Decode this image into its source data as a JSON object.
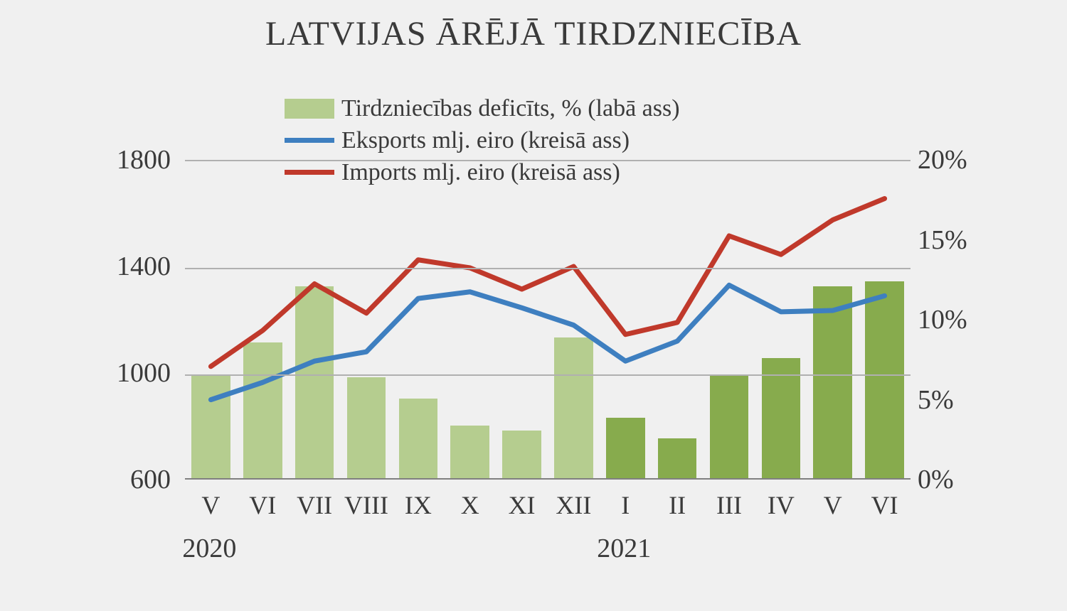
{
  "chart": {
    "title": "LATVIJAS ĀRĒJĀ TIRDZNIECĪBA",
    "background_color": "#f0f0f0",
    "grid_color": "#b0b0b0",
    "text_color": "#3a3a3a",
    "title_fontsize": 48,
    "label_fontsize": 38,
    "tick_fontsize": 36,
    "y_left": {
      "min": 600,
      "max": 1800,
      "ticks": [
        600,
        1000,
        1400,
        1800
      ]
    },
    "y_right": {
      "min": 0,
      "max": 20,
      "ticks": [
        0,
        5,
        10,
        15,
        20
      ],
      "tick_labels": [
        "0%",
        "5%",
        "10%",
        "15%",
        "20%"
      ]
    },
    "categories": [
      "V",
      "VI",
      "VII",
      "VIII",
      "IX",
      "X",
      "XI",
      "XII",
      "I",
      "II",
      "III",
      "IV",
      "V",
      "VI"
    ],
    "year_labels": [
      {
        "text": "2020",
        "at_index": 0
      },
      {
        "text": "2021",
        "at_index": 8
      }
    ],
    "series": {
      "deficit": {
        "type": "bar",
        "label": "Tirdzniecības deficīts, % (labā ass)",
        "axis": "right",
        "values": [
          6.5,
          8.5,
          12.0,
          6.3,
          5.0,
          3.3,
          3.0,
          8.8,
          3.8,
          2.5,
          6.5,
          7.5,
          12.0,
          12.3
        ],
        "colors": [
          "#b5cd8f",
          "#b5cd8f",
          "#b5cd8f",
          "#b5cd8f",
          "#b5cd8f",
          "#b5cd8f",
          "#b5cd8f",
          "#b5cd8f",
          "#87ab4d",
          "#87ab4d",
          "#87ab4d",
          "#87ab4d",
          "#87ab4d",
          "#87ab4d"
        ],
        "bar_width_ratio": 0.75
      },
      "exports": {
        "type": "line",
        "label": "Eksports mlj. eiro (kreisā ass)",
        "axis": "left",
        "values": [
          905,
          970,
          1050,
          1085,
          1285,
          1310,
          1250,
          1185,
          1050,
          1125,
          1335,
          1235,
          1240,
          1295
        ],
        "color": "#3e7fc0",
        "line_width": 7
      },
      "imports": {
        "type": "line",
        "label": "Imports mlj. eiro (kreisā ass)",
        "axis": "left",
        "values": [
          1030,
          1165,
          1340,
          1230,
          1430,
          1400,
          1320,
          1405,
          1150,
          1195,
          1520,
          1450,
          1580,
          1660
        ],
        "color": "#c0392b",
        "line_width": 7
      }
    },
    "legend": {
      "items": [
        {
          "key": "deficit",
          "swatch_type": "bar",
          "color": "#b5cd8f"
        },
        {
          "key": "exports",
          "swatch_type": "line",
          "color": "#3e7fc0"
        },
        {
          "key": "imports",
          "swatch_type": "line",
          "color": "#c0392b"
        }
      ]
    }
  }
}
